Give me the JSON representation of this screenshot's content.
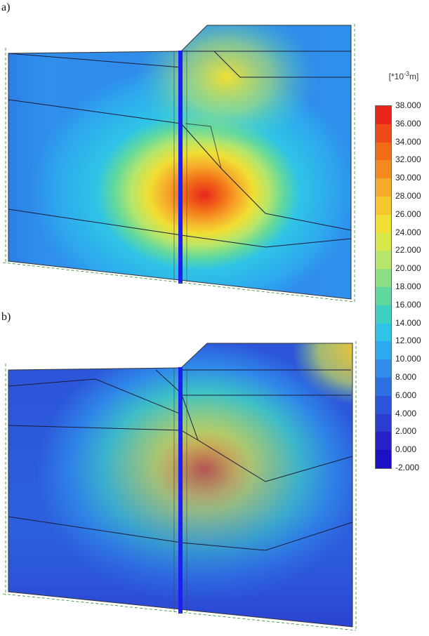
{
  "panels": [
    {
      "label": "a)",
      "hotspot": [
        0.56,
        0.6
      ],
      "intensity": 38,
      "top": 0
    },
    {
      "label": "b)",
      "hotspot": [
        0.55,
        0.45
      ],
      "intensity": 35,
      "top": 1
    }
  ],
  "legend": {
    "unit_prefix": "[*10",
    "unit_exp": "-3",
    "unit_suffix": "m]",
    "ticks": [
      "38.000",
      "36.000",
      "34.000",
      "32.000",
      "30.000",
      "28.000",
      "26.000",
      "24.000",
      "22.000",
      "20.000",
      "18.000",
      "16.000",
      "14.000",
      "12.000",
      "10.000",
      "8.000",
      "6.000",
      "4.000",
      "2.000",
      "0.000",
      "-2.000"
    ],
    "colors": [
      "#e8261c",
      "#ef4a17",
      "#f26b17",
      "#f48a1f",
      "#f6a92a",
      "#f7c52e",
      "#f0df33",
      "#d8e84a",
      "#b6e66a",
      "#8cde84",
      "#5fd8a0",
      "#3fd0c4",
      "#2fc4e6",
      "#2ea8ee",
      "#2f8ceb",
      "#2e70e2",
      "#2c55d9",
      "#2b3cd1",
      "#2822c6",
      "#1d0fc4"
    ]
  }
}
